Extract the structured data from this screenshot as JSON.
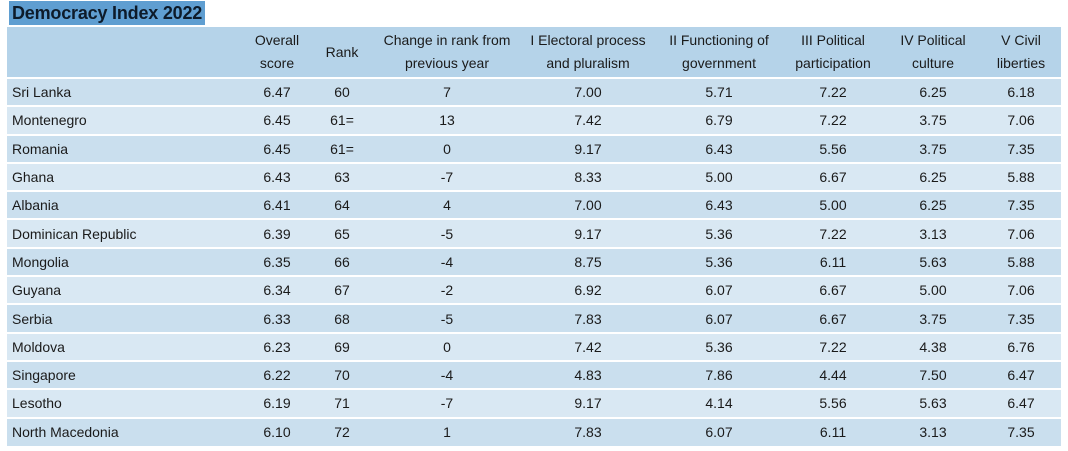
{
  "title": "Democracy Index 2022",
  "headers": [
    "",
    "Overall score",
    "Rank",
    "Change in rank from previous year",
    "I Electoral process and pluralism",
    "II Functioning of government",
    "III Political participation",
    "IV Political culture",
    "V Civil liberties"
  ],
  "rows": [
    [
      "Sri Lanka",
      "6.47",
      "60",
      "7",
      "7.00",
      "5.71",
      "7.22",
      "6.25",
      "6.18"
    ],
    [
      "Montenegro",
      "6.45",
      "61=",
      "13",
      "7.42",
      "6.79",
      "7.22",
      "3.75",
      "7.06"
    ],
    [
      "Romania",
      "6.45",
      "61=",
      "0",
      "9.17",
      "6.43",
      "5.56",
      "3.75",
      "7.35"
    ],
    [
      "Ghana",
      "6.43",
      "63",
      "-7",
      "8.33",
      "5.00",
      "6.67",
      "6.25",
      "5.88"
    ],
    [
      "Albania",
      "6.41",
      "64",
      "4",
      "7.00",
      "6.43",
      "5.00",
      "6.25",
      "7.35"
    ],
    [
      "Dominican Republic",
      "6.39",
      "65",
      "-5",
      "9.17",
      "5.36",
      "7.22",
      "3.13",
      "7.06"
    ],
    [
      "Mongolia",
      "6.35",
      "66",
      "-4",
      "8.75",
      "5.36",
      "6.11",
      "5.63",
      "5.88"
    ],
    [
      "Guyana",
      "6.34",
      "67",
      "-2",
      "6.92",
      "6.07",
      "6.67",
      "5.00",
      "7.06"
    ],
    [
      "Serbia",
      "6.33",
      "68",
      "-5",
      "7.83",
      "6.07",
      "6.67",
      "3.75",
      "7.35"
    ],
    [
      "Moldova",
      "6.23",
      "69",
      "0",
      "7.42",
      "5.36",
      "7.22",
      "4.38",
      "6.76"
    ],
    [
      "Singapore",
      "6.22",
      "70",
      "-4",
      "4.83",
      "7.86",
      "4.44",
      "7.50",
      "6.47"
    ],
    [
      "Lesotho",
      "6.19",
      "71",
      "-7",
      "9.17",
      "4.14",
      "5.56",
      "5.63",
      "6.47"
    ],
    [
      "North Macedonia",
      "6.10",
      "72",
      "1",
      "7.83",
      "6.07",
      "6.11",
      "3.13",
      "7.35"
    ]
  ]
}
